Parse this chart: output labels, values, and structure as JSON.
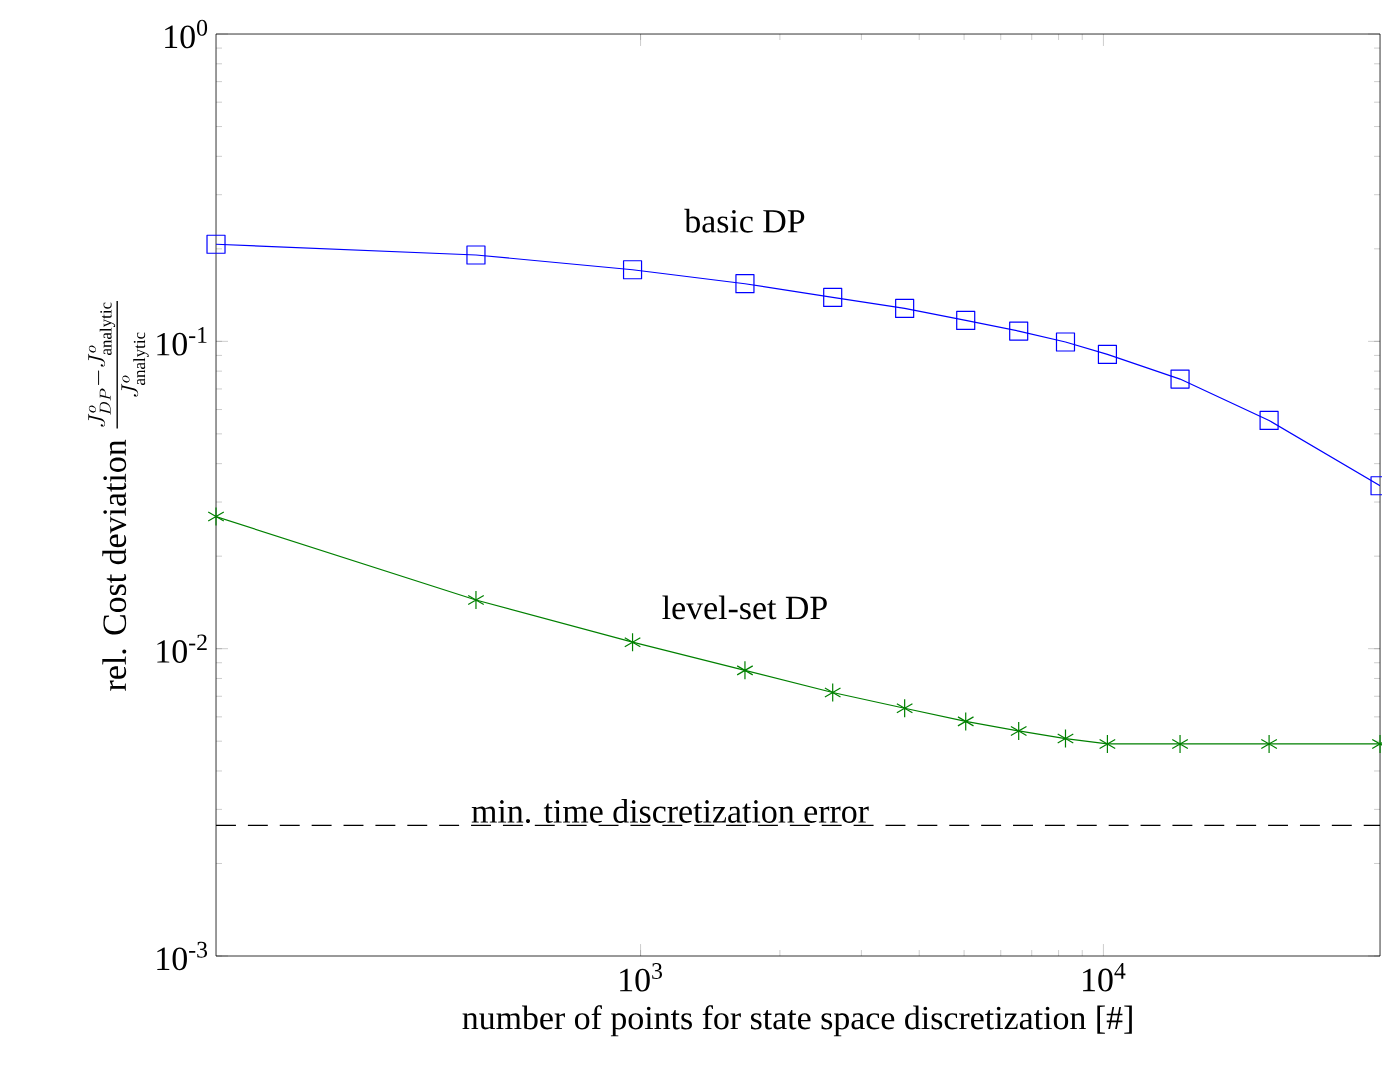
{
  "chart_data": {
    "type": "line",
    "xlabel": "number of points for state space discretization [#]",
    "ylabel": "\\text{rel. Cost deviation}\\ \\frac{J^o_{DP}-J^o_{\\text{analytic}}}{J^o_{\\text{analytic}}}",
    "x": [
      121,
      441,
      961,
      1681,
      2601,
      3721,
      5041,
      6561,
      8281,
      10201,
      14641,
      22801,
      39601
    ],
    "series": [
      {
        "name": "basic DP",
        "color": "#0000ff",
        "marker": "square",
        "values": [
          0.207,
          0.191,
          0.171,
          0.154,
          0.139,
          0.128,
          0.117,
          0.108,
          0.0995,
          0.0907,
          0.0754,
          0.0553,
          0.0339
        ]
      },
      {
        "name": "level-set DP",
        "color": "#008000",
        "marker": "cross",
        "values": [
          0.0269,
          0.0144,
          0.0105,
          0.0085,
          0.0072,
          0.0064,
          0.0058,
          0.0054,
          0.0051,
          0.0049,
          0.0049,
          0.0049,
          0.0049
        ]
      }
    ],
    "ref_lines": [
      {
        "axis": "y",
        "value": 0.00266,
        "label": "min. time discretization error",
        "color": "#000000",
        "line_style": "dashed"
      }
    ],
    "log": "xy",
    "xlim": [
      121,
      39601
    ],
    "ylim": [
      0.001,
      1
    ],
    "xticks": [
      {
        "value": 1000,
        "label": "10$^{3}$"
      },
      {
        "value": 10000,
        "label": "10$^{4}$"
      }
    ],
    "yticks": [
      {
        "value": 0.001,
        "label": "10$^{-3}$"
      },
      {
        "value": 0.01,
        "label": "10$^{-2}$"
      },
      {
        "value": 0.1,
        "label": "10$^{-1}$"
      },
      {
        "value": 1,
        "label": "10$^{0}$"
      }
    ],
    "grid": false,
    "legend": false,
    "line_style": "solid"
  }
}
